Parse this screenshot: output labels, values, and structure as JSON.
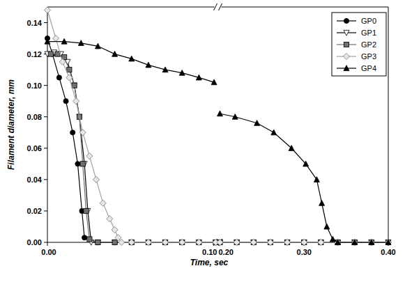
{
  "chart_data": {
    "type": "line",
    "x_label": "Time, sec",
    "y_label": "Filament diameter, mm",
    "xlim": [
      0,
      0.4
    ],
    "xbreak": [
      0.1,
      0.2
    ],
    "xticks": [
      {
        "value": 0,
        "label": "0.00"
      },
      {
        "value": 0.1,
        "label": "0.10"
      },
      {
        "value": 0.2,
        "label": "0.20"
      },
      {
        "value": 0.3,
        "label": "0.30"
      },
      {
        "value": 0.4,
        "label": "0.40"
      }
    ],
    "ylim": [
      0,
      0.15
    ],
    "yticks": [
      {
        "value": 0,
        "label": "0.00"
      },
      0.02,
      0.04,
      0.06,
      0.08,
      {
        "value": 0.1,
        "label": "0.10"
      },
      0.12,
      0.14
    ],
    "grid": false,
    "legend": "upper right",
    "series": [
      {
        "name": "GP0",
        "color": "#000000",
        "marker": "circle",
        "x": [
          0,
          0.003,
          0.007,
          0.011,
          0.015,
          0.018,
          0.0205,
          0.022,
          0.03,
          0.04,
          0.05,
          0.06,
          0.07,
          0.08,
          0.09,
          0.1,
          0.2,
          0.22,
          0.24,
          0.26,
          0.28,
          0.3,
          0.32,
          0.34,
          0.36,
          0.38,
          0.4
        ],
        "values": [
          0.13,
          0.12,
          0.105,
          0.09,
          0.07,
          0.05,
          0.02,
          0.003,
          0,
          0,
          0,
          0,
          0,
          0,
          0,
          0,
          0,
          0,
          0,
          0,
          0,
          0,
          0,
          0,
          0,
          0,
          0
        ]
      },
      {
        "name": "GP1",
        "color": "#000000",
        "marker": "triangle-down-open",
        "x": [
          0,
          0.004,
          0.008,
          0.012,
          0.016,
          0.019,
          0.022,
          0.024,
          0.026,
          0.03,
          0.04,
          0.05,
          0.06,
          0.07,
          0.08,
          0.09,
          0.1,
          0.2,
          0.22,
          0.24,
          0.26,
          0.28,
          0.3,
          0.32,
          0.34,
          0.36,
          0.38,
          0.4
        ],
        "values": [
          0.12,
          0.121,
          0.12,
          0.115,
          0.1,
          0.08,
          0.05,
          0.02,
          0,
          0,
          0,
          0,
          0,
          0,
          0,
          0,
          0,
          0,
          0,
          0,
          0,
          0,
          0,
          0,
          0,
          0,
          0,
          0
        ]
      },
      {
        "name": "GP2",
        "color": "#707070",
        "marker": "square",
        "x": [
          0.002,
          0.006,
          0.01,
          0.013,
          0.016,
          0.019,
          0.021,
          0.023,
          0.025,
          0.03,
          0.04,
          0.05,
          0.06,
          0.07,
          0.08,
          0.09,
          0.1,
          0.2,
          0.22,
          0.24,
          0.26,
          0.28,
          0.3,
          0.32,
          0.34,
          0.36,
          0.38,
          0.4
        ],
        "values": [
          0.12,
          0.12,
          0.118,
          0.11,
          0.1,
          0.08,
          0.05,
          0.02,
          0.002,
          0,
          0,
          0,
          0,
          0,
          0,
          0,
          0,
          0,
          0,
          0,
          0,
          0,
          0,
          0,
          0,
          0,
          0,
          0
        ]
      },
      {
        "name": "GP3",
        "color": "#a0a0a0",
        "marker": "diamond-open",
        "x": [
          0,
          0.005,
          0.009,
          0.013,
          0.017,
          0.021,
          0.025,
          0.029,
          0.033,
          0.037,
          0.04,
          0.042,
          0.044,
          0.05,
          0.06,
          0.07,
          0.08,
          0.09,
          0.1,
          0.2,
          0.22,
          0.24,
          0.26,
          0.28,
          0.3,
          0.32,
          0.34,
          0.36,
          0.38,
          0.4
        ],
        "values": [
          0.148,
          0.13,
          0.115,
          0.105,
          0.09,
          0.07,
          0.055,
          0.04,
          0.025,
          0.015,
          0.008,
          0.003,
          0,
          0,
          0,
          0,
          0,
          0,
          0,
          0,
          0,
          0,
          0,
          0,
          0,
          0,
          0,
          0,
          0,
          0
        ]
      },
      {
        "name": "GP4",
        "color": "#000000",
        "marker": "triangle",
        "x": [
          0,
          0.01,
          0.02,
          0.03,
          0.04,
          0.05,
          0.06,
          0.07,
          0.08,
          0.09,
          0.099,
          0.2,
          0.218,
          0.244,
          0.264,
          0.285,
          0.302,
          0.315,
          0.321,
          0.327,
          0.334,
          0.34,
          0.36,
          0.38,
          0.4
        ],
        "values": [
          0.128,
          0.128,
          0.127,
          0.125,
          0.12,
          0.117,
          0.113,
          0.11,
          0.108,
          0.105,
          0.102,
          0.082,
          0.08,
          0.076,
          0.07,
          0.06,
          0.05,
          0.04,
          0.025,
          0.01,
          0.002,
          0,
          0,
          0,
          0
        ]
      }
    ]
  }
}
